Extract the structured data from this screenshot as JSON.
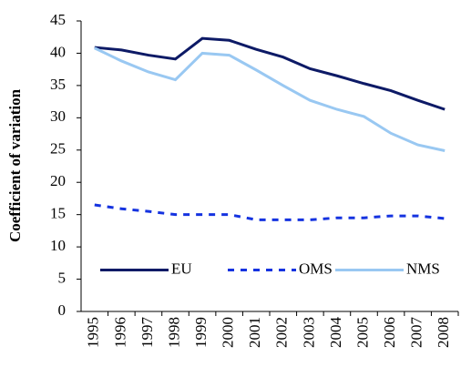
{
  "chart_data": {
    "type": "line",
    "y_label": "Coefficient of variation",
    "categories": [
      "1995",
      "1996",
      "1997",
      "1998",
      "1999",
      "2000",
      "2001",
      "2002",
      "2003",
      "2004",
      "2005",
      "2006",
      "2007",
      "2008"
    ],
    "series": [
      {
        "name": "EU",
        "color": "#0d1a66",
        "line_style": "solid",
        "values": [
          40.9,
          40.5,
          39.7,
          39.1,
          42.3,
          42.0,
          40.6,
          39.4,
          37.6,
          36.5,
          35.3,
          34.2,
          32.7,
          31.3
        ]
      },
      {
        "name": "OMS",
        "color": "#1533e0",
        "line_style": "dashed",
        "values": [
          16.5,
          15.9,
          15.5,
          15.0,
          15.0,
          15.0,
          14.2,
          14.2,
          14.2,
          14.5,
          14.5,
          14.8,
          14.8,
          14.4
        ]
      },
      {
        "name": "NMS",
        "color": "#99c8f2",
        "line_style": "solid",
        "values": [
          40.8,
          38.8,
          37.1,
          35.9,
          40.0,
          39.7,
          37.4,
          35.0,
          32.7,
          31.3,
          30.2,
          27.6,
          25.8,
          24.9
        ]
      }
    ],
    "ylim": [
      0,
      45
    ],
    "yticks": [
      0,
      5,
      10,
      15,
      20,
      25,
      30,
      35,
      40,
      45
    ],
    "legend": "bottom"
  }
}
